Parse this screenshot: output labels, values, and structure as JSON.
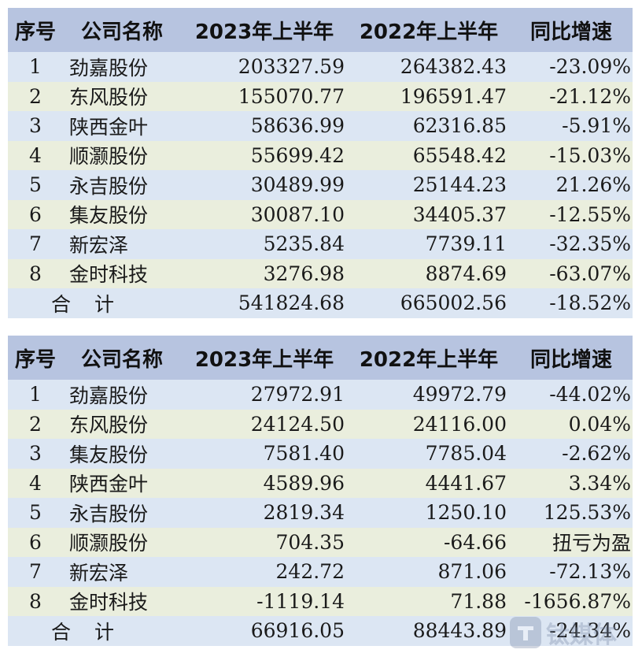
{
  "headers": [
    "序号",
    "公司名称",
    "2023年上半年",
    "2022年上半年",
    "同比增速"
  ],
  "table_a": {
    "rows": [
      {
        "no": "1",
        "name": "劲嘉股份",
        "v2023": "203327.59",
        "v2022": "264382.43",
        "yoy": "-23.09%"
      },
      {
        "no": "2",
        "name": "东风股份",
        "v2023": "155070.77",
        "v2022": "196591.47",
        "yoy": "-21.12%"
      },
      {
        "no": "3",
        "name": "陕西金叶",
        "v2023": "58636.99",
        "v2022": "62316.85",
        "yoy": "-5.91%"
      },
      {
        "no": "4",
        "name": "顺灏股份",
        "v2023": "55699.42",
        "v2022": "65548.42",
        "yoy": "-15.03%"
      },
      {
        "no": "5",
        "name": "永吉股份",
        "v2023": "30489.99",
        "v2022": "25144.23",
        "yoy": "21.26%"
      },
      {
        "no": "6",
        "name": "集友股份",
        "v2023": "30087.10",
        "v2022": "34405.37",
        "yoy": "-12.55%"
      },
      {
        "no": "7",
        "name": "新宏泽",
        "v2023": "5235.84",
        "v2022": "7739.11",
        "yoy": "-32.35%"
      },
      {
        "no": "8",
        "name": "金时科技",
        "v2023": "3276.98",
        "v2022": "8874.69",
        "yoy": "-63.07%"
      }
    ],
    "total": {
      "label": "合计",
      "v2023": "541824.68",
      "v2022": "665002.56",
      "yoy": "-18.52%"
    }
  },
  "table_b": {
    "rows": [
      {
        "no": "1",
        "name": "劲嘉股份",
        "v2023": "27972.91",
        "v2022": "49972.79",
        "yoy": "-44.02%"
      },
      {
        "no": "2",
        "name": "东风股份",
        "v2023": "24124.50",
        "v2022": "24116.00",
        "yoy": "0.04%"
      },
      {
        "no": "3",
        "name": "集友股份",
        "v2023": "7581.40",
        "v2022": "7785.04",
        "yoy": "-2.62%"
      },
      {
        "no": "4",
        "name": "陕西金叶",
        "v2023": "4589.96",
        "v2022": "4441.67",
        "yoy": "3.34%"
      },
      {
        "no": "5",
        "name": "永吉股份",
        "v2023": "2819.34",
        "v2022": "1250.10",
        "yoy": "125.53%"
      },
      {
        "no": "6",
        "name": "顺灏股份",
        "v2023": "704.35",
        "v2022": "-64.66",
        "yoy": "扭亏为盈"
      },
      {
        "no": "7",
        "name": "新宏泽",
        "v2023": "242.72",
        "v2022": "871.06",
        "yoy": "-72.13%"
      },
      {
        "no": "8",
        "name": "金时科技",
        "v2023": "-1119.14",
        "v2022": "71.88",
        "yoy": "-1656.87%"
      }
    ],
    "total": {
      "label": "合计",
      "v2023": "66916.05",
      "v2022": "88443.89",
      "yoy": "-24.34%"
    }
  },
  "watermark": {
    "text": "钛媒体"
  },
  "colors": {
    "header_bg": "#b7c4e0",
    "row_blue": "#dce6f3",
    "row_cream": "#eaeedd"
  }
}
